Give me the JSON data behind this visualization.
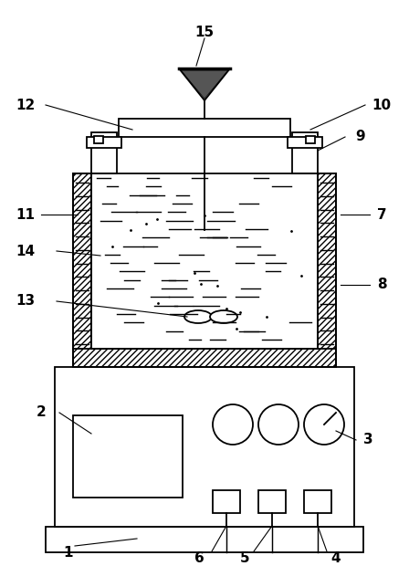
{
  "background_color": "#ffffff",
  "line_color": "#000000",
  "fig_width": 4.48,
  "fig_height": 6.2,
  "dpi": 100
}
